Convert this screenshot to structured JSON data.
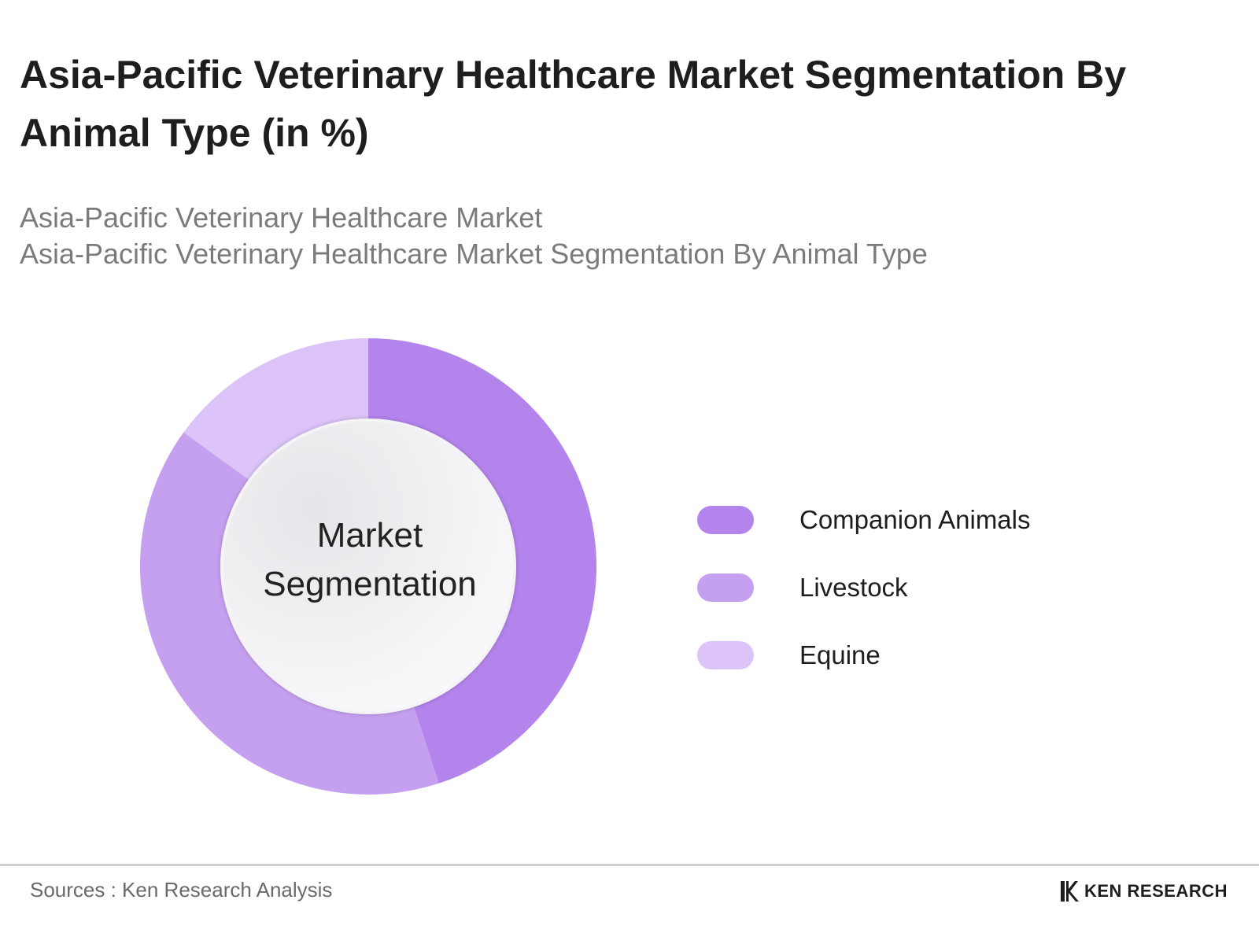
{
  "header": {
    "title": "Asia-Pacific Veterinary Healthcare Market Segmentation By Animal Type (in %)",
    "subtitle_line1": "Asia-Pacific Veterinary Healthcare Market",
    "subtitle_line2": "Asia-Pacific Veterinary Healthcare Market Segmentation By Animal Type"
  },
  "chart_data": {
    "type": "pie",
    "variant": "donut",
    "title": "Asia-Pacific Veterinary Healthcare Market Segmentation By Animal Type (in %)",
    "center_label_line1": "Market",
    "center_label_line2": "Segmentation",
    "categories": [
      "Companion Animals",
      "Livestock",
      "Equine"
    ],
    "values": [
      45,
      40,
      15
    ],
    "colors": [
      "#b484ed",
      "#c6a0f0",
      "#dcc4f8"
    ],
    "legend_position": "right"
  },
  "footer": {
    "source": "Sources : Ken Research Analysis",
    "brand": "KEN RESEARCH"
  }
}
